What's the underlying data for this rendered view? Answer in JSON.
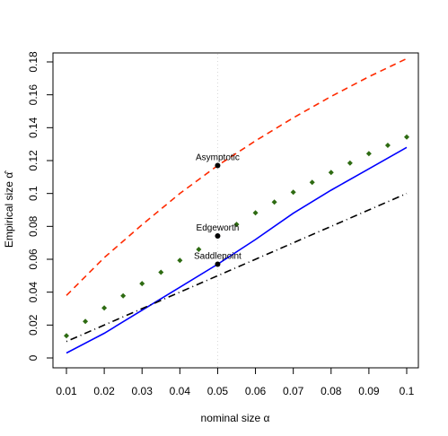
{
  "chart_data": {
    "type": "line",
    "xlabel": "nominal size α",
    "ylabel": "Empirical size α̂",
    "xlim": [
      0.01,
      0.1
    ],
    "ylim": [
      0,
      0.18
    ],
    "x_ticks": [
      0.01,
      0.02,
      0.03,
      0.04,
      0.05,
      0.06,
      0.07,
      0.08,
      0.09,
      0.1
    ],
    "x_tick_labels": [
      "0.01",
      "0.02",
      "0.03",
      "0.04",
      "0.05",
      "0.06",
      "0.07",
      "0.08",
      "0.09",
      "0.1"
    ],
    "y_ticks": [
      0,
      0.02,
      0.04,
      0.06,
      0.08,
      0.1,
      0.12,
      0.14,
      0.16,
      0.18
    ],
    "y_tick_labels": [
      "0",
      "0.02",
      "0.04",
      "0.06",
      "0.08",
      "0.1",
      "0.12",
      "0.14",
      "0.16",
      "0.18"
    ],
    "grid": false,
    "series": [
      {
        "style": "dashed",
        "color": "#ff2a00",
        "x": [
          0.01,
          0.02,
          0.03,
          0.04,
          0.05,
          0.06,
          0.07,
          0.08,
          0.09,
          0.1
        ],
        "y": [
          0.038,
          0.061,
          0.081,
          0.1,
          0.117,
          0.132,
          0.146,
          0.159,
          0.171,
          0.182
        ]
      },
      {
        "style": "points",
        "color": "#2e6b12",
        "x": [
          0.01,
          0.015,
          0.02,
          0.025,
          0.03,
          0.035,
          0.04,
          0.045,
          0.05,
          0.055,
          0.06,
          0.065,
          0.07,
          0.075,
          0.08,
          0.085,
          0.09,
          0.095,
          0.1
        ],
        "y": [
          0.0135,
          0.0222,
          0.0304,
          0.0378,
          0.0452,
          0.0521,
          0.0593,
          0.066,
          0.0742,
          0.0812,
          0.0882,
          0.0948,
          0.1008,
          0.1068,
          0.1128,
          0.1185,
          0.1242,
          0.1293,
          0.1343
        ]
      },
      {
        "style": "solid",
        "color": "#0000ff",
        "x": [
          0.01,
          0.02,
          0.03,
          0.04,
          0.05,
          0.06,
          0.07,
          0.08,
          0.09,
          0.1
        ],
        "y": [
          0.003,
          0.015,
          0.029,
          0.043,
          0.057,
          0.072,
          0.088,
          0.102,
          0.115,
          0.128
        ]
      },
      {
        "style": "dotdash",
        "color": "#000000",
        "x": [
          0.01,
          0.1
        ],
        "y": [
          0.01,
          0.1
        ]
      }
    ],
    "vline": {
      "x": 0.05,
      "style": "dotted",
      "color": "#d8d8d8"
    },
    "annotations": [
      {
        "label": "Asymptotic",
        "x": 0.05,
        "y": 0.117
      },
      {
        "label": "Edgeworth",
        "x": 0.05,
        "y": 0.0742
      },
      {
        "label": "Saddlepoint",
        "x": 0.05,
        "y": 0.057
      }
    ]
  }
}
